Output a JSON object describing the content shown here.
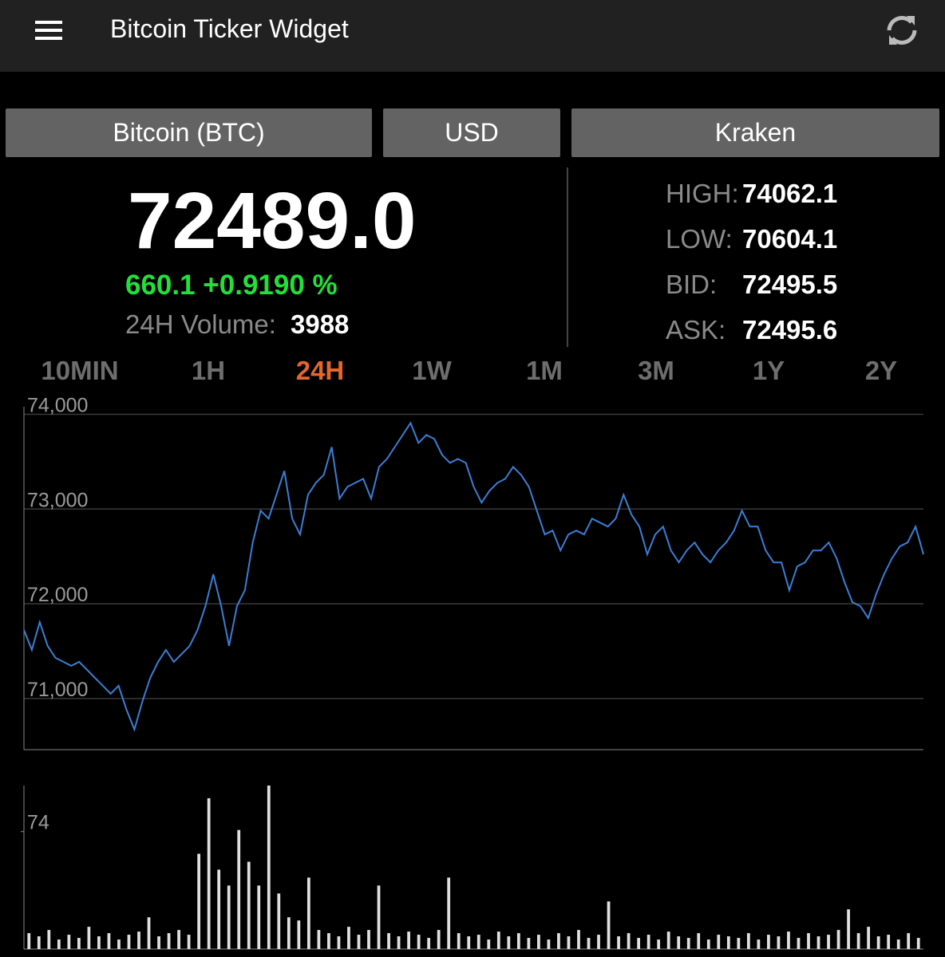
{
  "header": {
    "title": "Bitcoin Ticker Widget"
  },
  "selectors": [
    "Bitcoin (BTC)",
    "USD",
    "Kraken"
  ],
  "price": "72489.0",
  "change": "660.1 +0.9190 %",
  "volume": {
    "label": "24H Volume:",
    "value": "3988"
  },
  "stats": [
    {
      "label": "HIGH:",
      "value": "74062.1"
    },
    {
      "label": "LOW:",
      "value": "70604.1"
    },
    {
      "label": "BID:",
      "value": "72495.5"
    },
    {
      "label": "ASK:",
      "value": "72495.6"
    }
  ],
  "tabs": [
    "10MIN",
    "1H",
    "24H",
    "1W",
    "1M",
    "3M",
    "1Y",
    "2Y"
  ],
  "chart_data": [
    {
      "type": "line",
      "color": "#3a7fd5",
      "grid": true,
      "ylim": [
        70460,
        74080
      ],
      "yticks": [
        {
          "value": 71000,
          "label": "71,000"
        },
        {
          "value": 72000,
          "label": "72,000"
        },
        {
          "value": 73000,
          "label": "73,000"
        },
        {
          "value": 74000,
          "label": "74,000"
        }
      ],
      "values": [
        71723,
        71513,
        71807,
        71555,
        71429,
        71387,
        71345,
        71387,
        71303,
        71218,
        71134,
        71050,
        71134,
        70882,
        70672,
        70966,
        71218,
        71387,
        71513,
        71387,
        71471,
        71555,
        71723,
        71975,
        72311,
        71975,
        71555,
        71975,
        72143,
        72647,
        72983,
        72899,
        73151,
        73403,
        72899,
        72731,
        73151,
        73277,
        73361,
        73655,
        73109,
        73235,
        73277,
        73319,
        73109,
        73445,
        73529,
        73655,
        73782,
        73908,
        73697,
        73782,
        73740,
        73571,
        73487,
        73529,
        73487,
        73235,
        73067,
        73193,
        73277,
        73319,
        73445,
        73361,
        73235,
        72983,
        72731,
        72773,
        72563,
        72731,
        72773,
        72731,
        72899,
        72857,
        72815,
        72899,
        73151,
        72941,
        72815,
        72521,
        72731,
        72815,
        72563,
        72437,
        72563,
        72647,
        72521,
        72437,
        72563,
        72647,
        72773,
        72983,
        72815,
        72815,
        72563,
        72437,
        72437,
        72143,
        72395,
        72437,
        72563,
        72563,
        72647,
        72479,
        72227,
        72017,
        71975,
        71849,
        72101,
        72311,
        72479,
        72605,
        72647,
        72815,
        72521
      ]
    },
    {
      "type": "bar",
      "color": "#e0e0e0",
      "ylim": [
        0,
        103
      ],
      "yticks": [
        74
      ],
      "values": [
        10,
        8,
        12,
        6,
        9,
        7,
        14,
        8,
        10,
        6,
        9,
        11,
        20,
        8,
        10,
        12,
        9,
        60,
        95,
        50,
        40,
        75,
        55,
        40,
        103,
        35,
        20,
        18,
        45,
        12,
        10,
        8,
        14,
        9,
        12,
        40,
        10,
        8,
        11,
        9,
        7,
        12,
        45,
        10,
        8,
        9,
        6,
        11,
        8,
        10,
        7,
        9,
        6,
        10,
        8,
        12,
        7,
        9,
        30,
        8,
        10,
        7,
        9,
        6,
        11,
        8,
        7,
        10,
        6,
        9,
        8,
        7,
        10,
        6,
        9,
        8,
        11,
        7,
        10,
        8,
        9,
        12,
        25,
        10,
        14,
        8,
        9,
        6,
        10,
        7
      ]
    }
  ]
}
